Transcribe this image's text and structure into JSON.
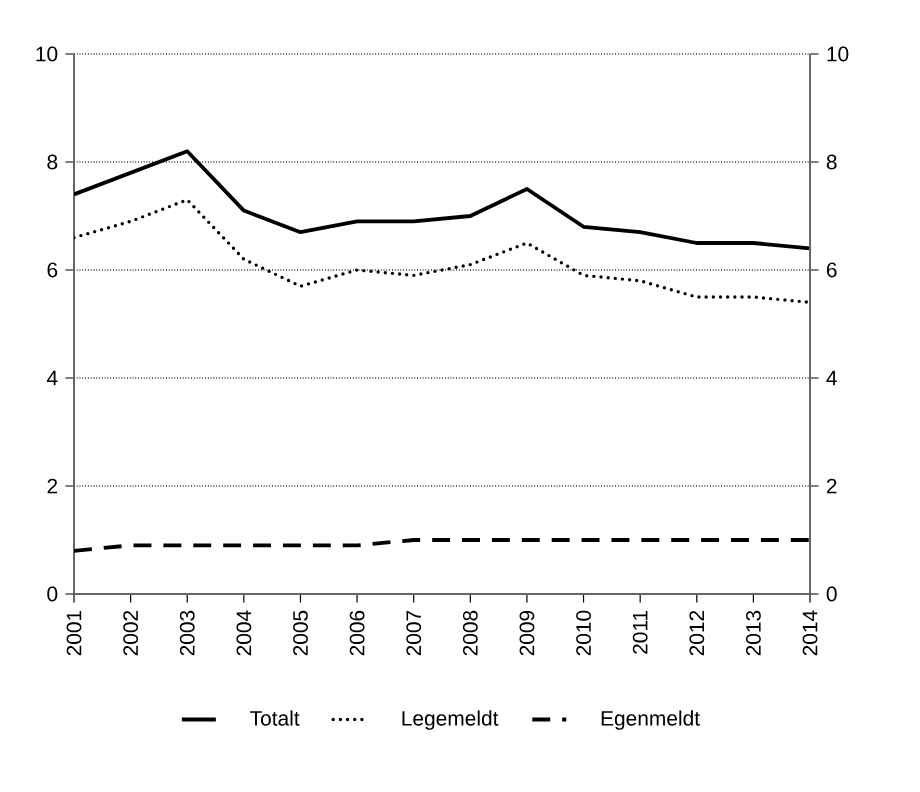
{
  "chart_data": {
    "type": "line",
    "categories": [
      "2001",
      "2002",
      "2003",
      "2004",
      "2005",
      "2006",
      "2007",
      "2008",
      "2009",
      "2010",
      "2011",
      "2012",
      "2013",
      "2014"
    ],
    "series": [
      {
        "name": "Totalt",
        "color": "#000000",
        "line_style": "solid",
        "values": [
          7.4,
          7.8,
          8.2,
          7.1,
          6.7,
          6.9,
          6.9,
          7.0,
          7.5,
          6.8,
          6.7,
          6.5,
          6.5,
          6.4
        ]
      },
      {
        "name": "Legemeldt",
        "color": "#000000",
        "line_style": "dotted",
        "values": [
          6.6,
          6.9,
          7.3,
          6.2,
          5.7,
          6.0,
          5.9,
          6.1,
          6.5,
          5.9,
          5.8,
          5.5,
          5.5,
          5.4
        ]
      },
      {
        "name": "Egenmeldt",
        "color": "#000000",
        "line_style": "dashed",
        "values": [
          0.8,
          0.9,
          0.9,
          0.9,
          0.9,
          0.9,
          1.0,
          1.0,
          1.0,
          1.0,
          1.0,
          1.0,
          1.0,
          1.0
        ]
      }
    ],
    "ylim": [
      0,
      10
    ],
    "yticks": [
      0,
      2,
      4,
      6,
      8,
      10
    ],
    "y2lim": [
      0,
      10
    ],
    "y2ticks": [
      0,
      2,
      4,
      6,
      8,
      10
    ],
    "grid": "y",
    "legend": "bottom",
    "marker": "none"
  }
}
